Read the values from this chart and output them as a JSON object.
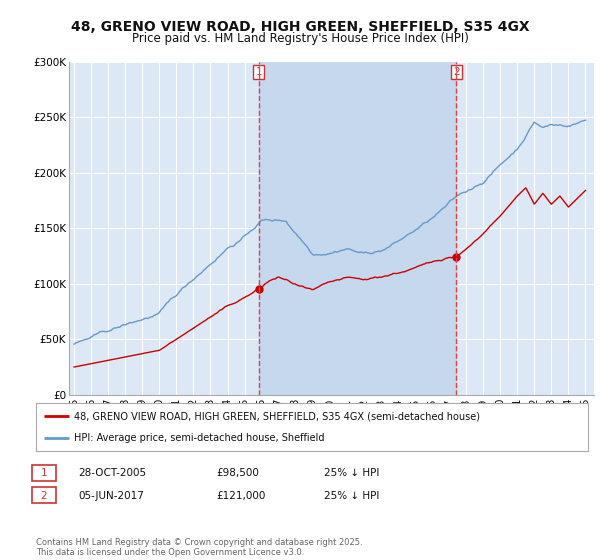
{
  "title": "48, GRENO VIEW ROAD, HIGH GREEN, SHEFFIELD, S35 4GX",
  "subtitle": "Price paid vs. HM Land Registry's House Price Index (HPI)",
  "title_fontsize": 10,
  "subtitle_fontsize": 8.5,
  "background_color": "#ffffff",
  "plot_bg_color": "#dce8f5",
  "shaded_region_color": "#c5d8ee",
  "grid_color": "#ffffff",
  "red_line_color": "#cc0000",
  "blue_line_color": "#6699cc",
  "marker1_x": 2005.83,
  "marker2_x": 2017.43,
  "marker1_label": "1",
  "marker2_label": "2",
  "marker1_price": 98500,
  "marker2_price": 121000,
  "legend_entry1": "48, GRENO VIEW ROAD, HIGH GREEN, SHEFFIELD, S35 4GX (semi-detached house)",
  "legend_entry2": "HPI: Average price, semi-detached house, Sheffield",
  "table_row1": [
    "1",
    "28-OCT-2005",
    "£98,500",
    "25% ↓ HPI"
  ],
  "table_row2": [
    "2",
    "05-JUN-2017",
    "£121,000",
    "25% ↓ HPI"
  ],
  "footer": "Contains HM Land Registry data © Crown copyright and database right 2025.\nThis data is licensed under the Open Government Licence v3.0.",
  "ylim": [
    0,
    300000
  ],
  "xlim_start": 1994.7,
  "xlim_end": 2025.5,
  "yticks": [
    0,
    50000,
    100000,
    150000,
    200000,
    250000,
    300000
  ],
  "ytick_labels": [
    "£0",
    "£50K",
    "£100K",
    "£150K",
    "£200K",
    "£250K",
    "£300K"
  ],
  "xticks": [
    1995,
    1996,
    1997,
    1998,
    1999,
    2000,
    2001,
    2002,
    2003,
    2004,
    2005,
    2006,
    2007,
    2008,
    2009,
    2010,
    2011,
    2012,
    2013,
    2014,
    2015,
    2016,
    2017,
    2018,
    2019,
    2020,
    2021,
    2022,
    2023,
    2024,
    2025
  ],
  "xtick_labels": [
    "95",
    "96",
    "97",
    "98",
    "99",
    "00",
    "01",
    "02",
    "03",
    "04",
    "05",
    "06",
    "07",
    "08",
    "09",
    "10",
    "11",
    "12",
    "13",
    "14",
    "15",
    "16",
    "17",
    "18",
    "19",
    "20",
    "21",
    "22",
    "23",
    "24",
    "25"
  ]
}
